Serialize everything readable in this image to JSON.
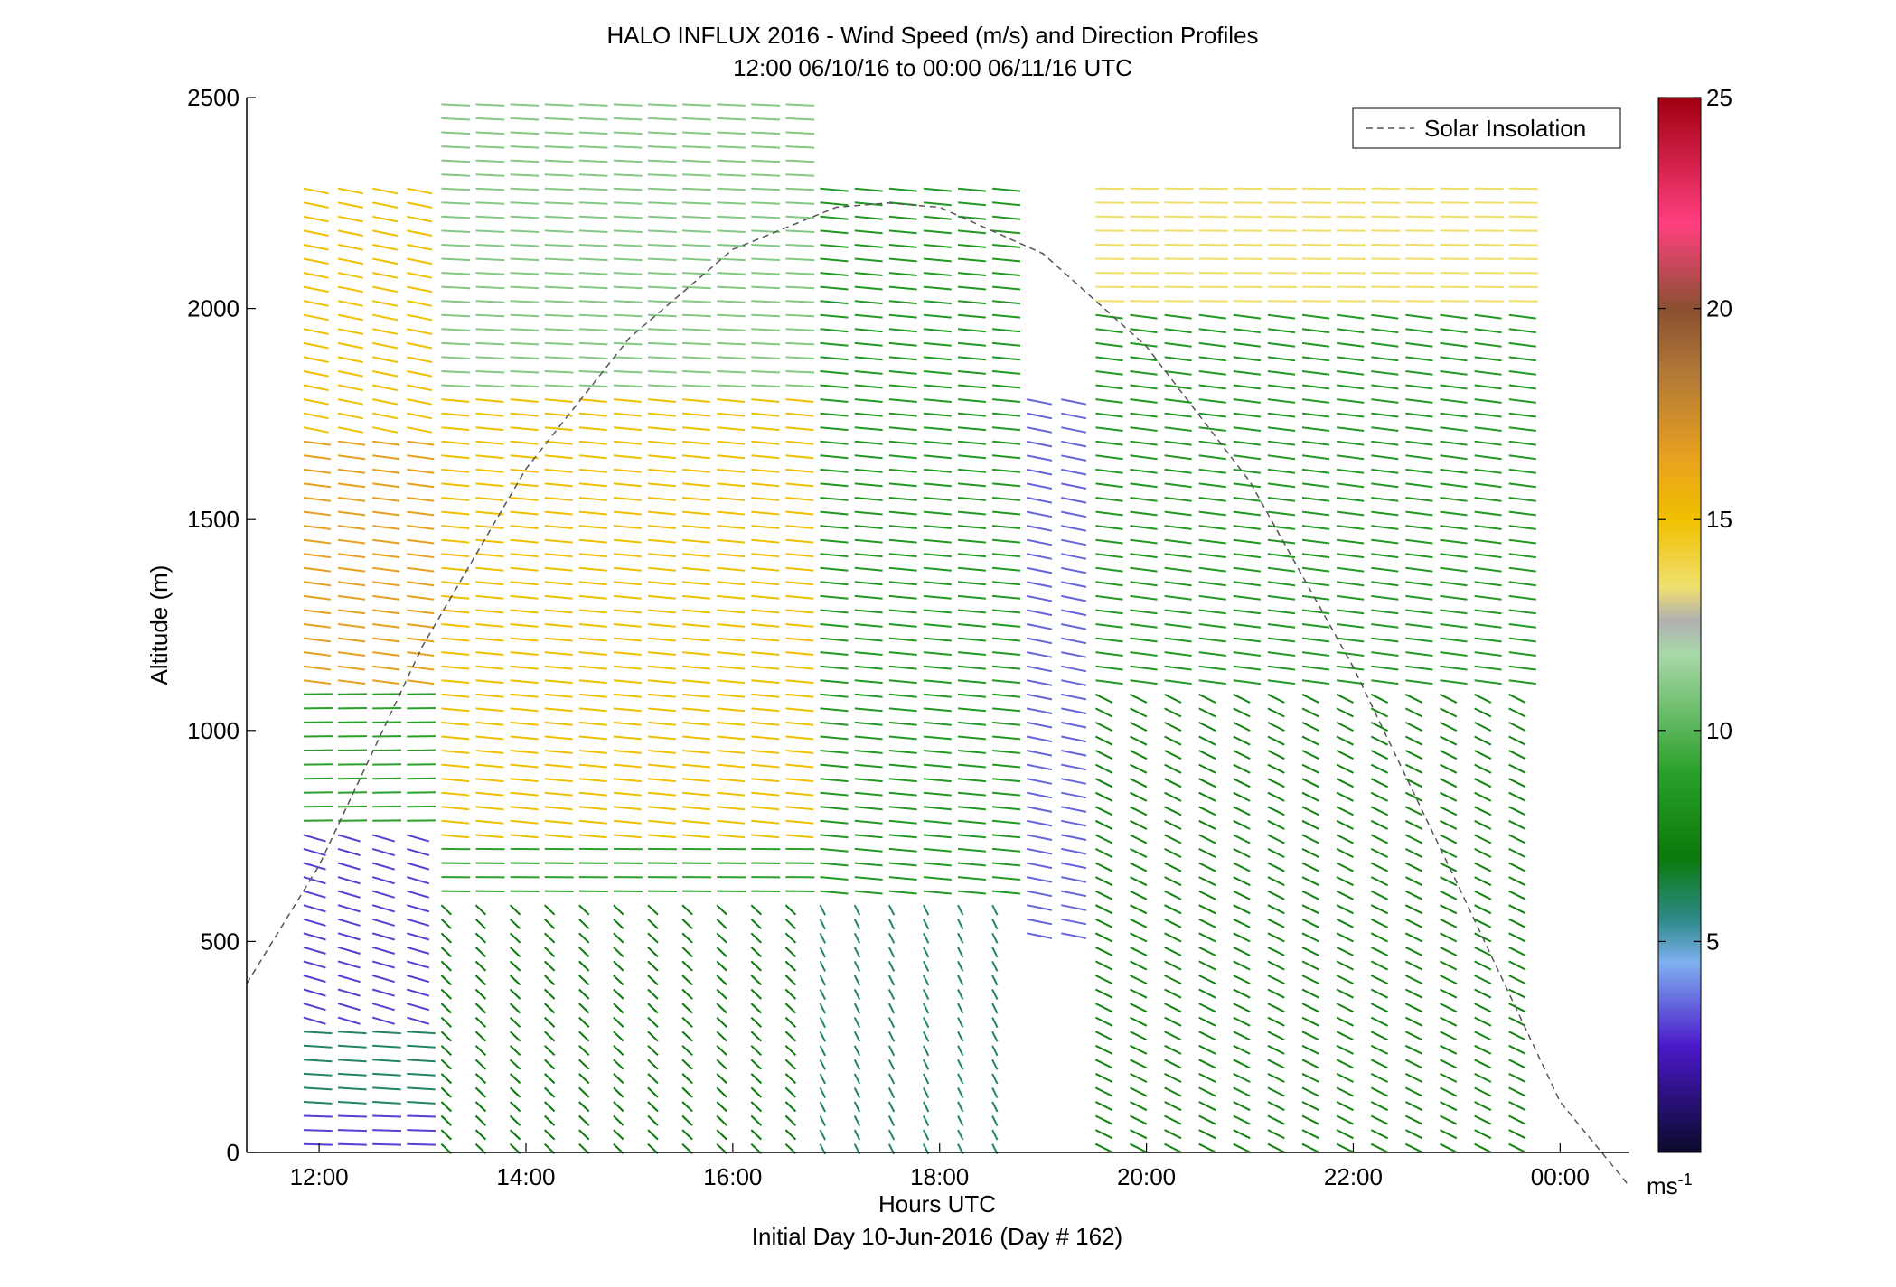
{
  "chart_data": {
    "type": "wind_barb_profile",
    "title": "HALO INFLUX 2016 - Wind Speed (m/s) and Direction Profiles",
    "subtitle": "12:00 06/10/16 to 00:00 06/11/16  UTC",
    "xlabel": "Hours UTC",
    "xlabel2": "Initial Day 10-Jun-2016 (Day # 162)",
    "ylabel": "Altitude (m)",
    "xlim": [
      11.3,
      24.67
    ],
    "ylim": [
      0,
      2500
    ],
    "x_ticks": [
      12,
      14,
      16,
      18,
      20,
      22,
      24
    ],
    "x_tick_labels": [
      "12:00",
      "14:00",
      "16:00",
      "18:00",
      "20:00",
      "22:00",
      "00:00"
    ],
    "y_ticks": [
      0,
      500,
      1000,
      1500,
      2000,
      2500
    ],
    "y_tick_labels": [
      "0",
      "500",
      "1000",
      "1500",
      "2000",
      "2500"
    ],
    "legend": {
      "label": "Solar Insolation",
      "placement": "top-right",
      "style": "dashed gray"
    },
    "colorbar": {
      "range": [
        0,
        25
      ],
      "ticks": [
        5,
        10,
        15,
        20,
        25
      ],
      "tick_labels": [
        "5",
        "10",
        "15",
        "20",
        "25"
      ],
      "unit_label": "ms",
      "unit_exponent": "-1",
      "stops": [
        {
          "v": 0,
          "c": "#0a0a2a"
        },
        {
          "v": 2.5,
          "c": "#4a18c8"
        },
        {
          "v": 4.5,
          "c": "#7fb0f0"
        },
        {
          "v": 5.5,
          "c": "#2e8a8a"
        },
        {
          "v": 7,
          "c": "#0a7a0a"
        },
        {
          "v": 9,
          "c": "#2aa02a"
        },
        {
          "v": 11.8,
          "c": "#a8d8a8"
        },
        {
          "v": 12.6,
          "c": "#b0b0b0"
        },
        {
          "v": 13.4,
          "c": "#f0e070"
        },
        {
          "v": 15,
          "c": "#f0c000"
        },
        {
          "v": 16.5,
          "c": "#e8a020"
        },
        {
          "v": 18.5,
          "c": "#b07838"
        },
        {
          "v": 20,
          "c": "#8a5030"
        },
        {
          "v": 22,
          "c": "#ff4080"
        },
        {
          "v": 25,
          "c": "#a00010"
        }
      ]
    },
    "solar_insolation": {
      "x": [
        11.3,
        12.0,
        13.0,
        14.0,
        15.0,
        16.0,
        17.0,
        17.5,
        18.0,
        19.0,
        20.0,
        21.0,
        22.0,
        23.0,
        24.0,
        24.67
      ],
      "y": [
        400,
        680,
        1200,
        1620,
        1930,
        2140,
        2240,
        2250,
        2240,
        2130,
        1910,
        1590,
        1150,
        640,
        120,
        -80
      ]
    },
    "time_range_hours": [
      11.85,
      23.85
    ],
    "profile_interval_hours": 0.333,
    "altitude_step_m": 33.3,
    "wind_field_summary": [
      {
        "time_range": [
          "11:50",
          "13:00"
        ],
        "alt_range_m": [
          0,
          100
        ],
        "speed_ms": 3,
        "dir_deg": 275
      },
      {
        "time_range": [
          "11:50",
          "13:00"
        ],
        "alt_range_m": [
          100,
          300
        ],
        "speed_ms": 6,
        "dir_deg": 280
      },
      {
        "time_range": [
          "11:50",
          "13:00"
        ],
        "alt_range_m": [
          300,
          780
        ],
        "speed_ms": 3,
        "dir_deg": 310
      },
      {
        "time_range": [
          "11:50",
          "13:00"
        ],
        "alt_range_m": [
          780,
          1100
        ],
        "speed_ms": 9,
        "dir_deg": 268
      },
      {
        "time_range": [
          "11:50",
          "13:00"
        ],
        "alt_range_m": [
          1100,
          1700
        ],
        "speed_ms": 16.5,
        "dir_deg": 290
      },
      {
        "time_range": [
          "11:50",
          "13:00"
        ],
        "alt_range_m": [
          1700,
          2300
        ],
        "speed_ms": 15,
        "dir_deg": 300
      },
      {
        "time_range": [
          "13:00",
          "16:40"
        ],
        "alt_range_m": [
          0,
          600
        ],
        "speed_ms": 7,
        "dir_deg": 340
      },
      {
        "time_range": [
          "13:00",
          "16:40"
        ],
        "alt_range_m": [
          600,
          750
        ],
        "speed_ms": 9,
        "dir_deg": 272
      },
      {
        "time_range": [
          "13:00",
          "16:40"
        ],
        "alt_range_m": [
          750,
          1800
        ],
        "speed_ms": 15,
        "dir_deg": 285
      },
      {
        "time_range": [
          "13:00",
          "16:40"
        ],
        "alt_range_m": [
          1800,
          2500
        ],
        "speed_ms": 11,
        "dir_deg": 278
      },
      {
        "time_range": [
          "16:40",
          "18:40"
        ],
        "alt_range_m": [
          0,
          600
        ],
        "speed_ms": 6,
        "dir_deg": 350
      },
      {
        "time_range": [
          "16:40",
          "18:40"
        ],
        "alt_range_m": [
          600,
          2300
        ],
        "speed_ms": 8.5,
        "dir_deg": 285
      },
      {
        "time_range": [
          "18:40",
          "19:20"
        ],
        "alt_range_m": [
          500,
          1800
        ],
        "speed_ms": 3.5,
        "dir_deg": 300
      },
      {
        "time_range": [
          "19:20",
          "23:50"
        ],
        "alt_range_m": [
          0,
          1100
        ],
        "speed_ms": 7.5,
        "dir_deg": 325
      },
      {
        "time_range": [
          "19:20",
          "23:50"
        ],
        "alt_range_m": [
          1100,
          2000
        ],
        "speed_ms": 8.5,
        "dir_deg": 290
      },
      {
        "time_range": [
          "19:20",
          "23:50"
        ],
        "alt_range_m": [
          2000,
          2300
        ],
        "speed_ms": 13.5,
        "dir_deg": 272
      }
    ]
  }
}
